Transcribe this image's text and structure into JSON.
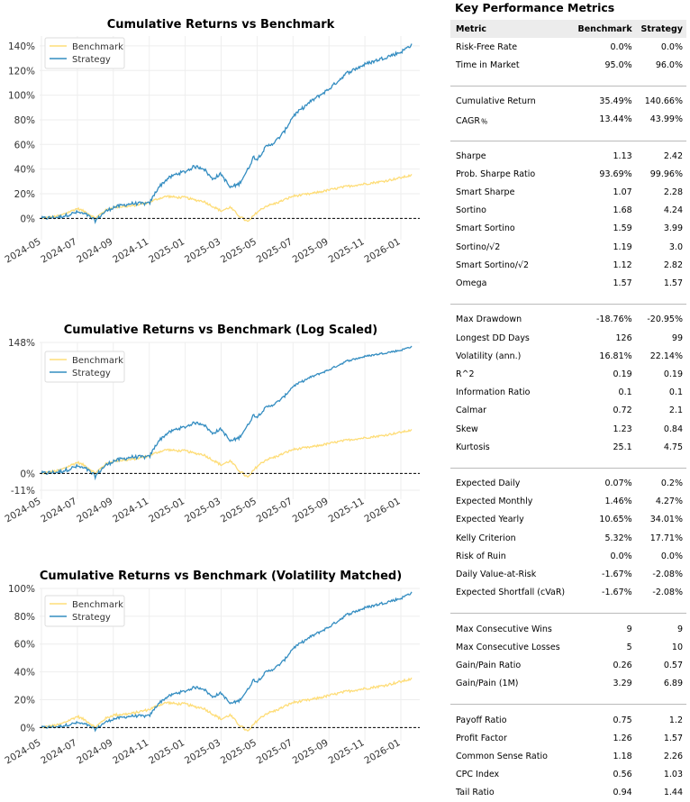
{
  "charts": [
    {
      "id": "cum",
      "title": "Cumulative Returns vs Benchmark",
      "type": "line",
      "scale": "linear",
      "ylim": [
        -0.1,
        1.48
      ],
      "yticks": [
        0,
        0.2,
        0.4,
        0.6,
        0.8,
        1.0,
        1.2,
        1.4
      ],
      "ytick_labels": [
        "0%",
        "20%",
        "40%",
        "60%",
        "80%",
        "100%",
        "120%",
        "140%"
      ],
      "benchmark_end": 0.35,
      "strategy_end": 1.41
    },
    {
      "id": "log",
      "title": "Cumulative Returns vs Benchmark (Log Scaled)",
      "type": "line",
      "scale": "log",
      "ylim": [
        -0.11,
        1.48
      ],
      "yticks": [
        -0.11,
        0,
        1.48
      ],
      "ytick_labels": [
        "-11%",
        "0%",
        "148%"
      ],
      "benchmark_end": 0.35,
      "strategy_end": 1.41
    },
    {
      "id": "vol",
      "title": "Cumulative Returns vs Benchmark (Volatility Matched)",
      "type": "line",
      "scale": "linear",
      "ylim": [
        -0.03,
        1.0
      ],
      "yticks": [
        0,
        0.2,
        0.4,
        0.6,
        0.8,
        1.0
      ],
      "ytick_labels": [
        "0%",
        "20%",
        "40%",
        "60%",
        "80%",
        "100%"
      ],
      "benchmark_end": 0.35,
      "strategy_end": 0.97
    }
  ],
  "chart_data": {
    "type": "line",
    "x_ticks": [
      "2024-05",
      "2024-07",
      "2024-09",
      "2024-11",
      "2025-01",
      "2025-03",
      "2025-05",
      "2025-07",
      "2025-09",
      "2025-11",
      "2026-01"
    ],
    "legend": [
      "Benchmark",
      "Strategy"
    ],
    "colors": {
      "benchmark": "#fedd78",
      "strategy": "#348dc1",
      "baseline": "#000000",
      "grid": "#eeeeee"
    },
    "x_months": [
      0,
      1,
      2,
      2.5,
      3,
      3.5,
      4,
      5,
      6,
      6.5,
      7,
      7.5,
      8,
      8.5,
      9,
      9.5,
      10,
      10.5,
      11,
      11.5,
      11.8,
      12,
      12.5,
      13,
      13.5,
      14,
      15,
      16,
      17,
      18,
      19,
      20,
      20.6
    ],
    "series": [
      {
        "name": "Benchmark",
        "values": [
          0,
          0.02,
          0.08,
          0.05,
          0.0,
          0.06,
          0.09,
          0.1,
          0.13,
          0.16,
          0.18,
          0.17,
          0.17,
          0.15,
          0.14,
          0.1,
          0.06,
          0.09,
          0.02,
          -0.03,
          0.02,
          0.05,
          0.1,
          0.12,
          0.15,
          0.18,
          0.2,
          0.23,
          0.26,
          0.28,
          0.3,
          0.33,
          0.35
        ]
      },
      {
        "name": "Strategy",
        "values": [
          0,
          0.01,
          0.05,
          0.03,
          -0.02,
          0.05,
          0.09,
          0.12,
          0.12,
          0.25,
          0.32,
          0.36,
          0.38,
          0.42,
          0.41,
          0.32,
          0.36,
          0.25,
          0.28,
          0.4,
          0.5,
          0.48,
          0.58,
          0.62,
          0.7,
          0.83,
          0.95,
          1.05,
          1.18,
          1.25,
          1.3,
          1.35,
          1.41
        ]
      }
    ]
  },
  "metrics": {
    "title": "Key Performance Metrics",
    "headers": [
      "Metric",
      "Benchmark",
      "Strategy"
    ],
    "groups": [
      [
        [
          "Risk-Free Rate",
          "0.0%",
          "0.0%"
        ],
        [
          "Time in Market",
          "95.0%",
          "96.0%"
        ]
      ],
      [
        [
          "Cumulative Return",
          "35.49%",
          "140.66%"
        ],
        [
          "CAGR﹪",
          "13.44%",
          "43.99%"
        ]
      ],
      [
        [
          "Sharpe",
          "1.13",
          "2.42"
        ],
        [
          "Prob. Sharpe Ratio",
          "93.69%",
          "99.96%"
        ],
        [
          "Smart Sharpe",
          "1.07",
          "2.28"
        ],
        [
          "Sortino",
          "1.68",
          "4.24"
        ],
        [
          "Smart Sortino",
          "1.59",
          "3.99"
        ],
        [
          "Sortino/√2",
          "1.19",
          "3.0"
        ],
        [
          "Smart Sortino/√2",
          "1.12",
          "2.82"
        ],
        [
          "Omega",
          "1.57",
          "1.57"
        ]
      ],
      [
        [
          "Max Drawdown",
          "-18.76%",
          "-20.95%"
        ],
        [
          "Longest DD Days",
          "126",
          "99"
        ],
        [
          "Volatility (ann.)",
          "16.81%",
          "22.14%"
        ],
        [
          "R^2",
          "0.19",
          "0.19"
        ],
        [
          "Information Ratio",
          "0.1",
          "0.1"
        ],
        [
          "Calmar",
          "0.72",
          "2.1"
        ],
        [
          "Skew",
          "1.23",
          "0.84"
        ],
        [
          "Kurtosis",
          "25.1",
          "4.75"
        ]
      ],
      [
        [
          "Expected Daily",
          "0.07%",
          "0.2%"
        ],
        [
          "Expected Monthly",
          "1.46%",
          "4.27%"
        ],
        [
          "Expected Yearly",
          "10.65%",
          "34.01%"
        ],
        [
          "Kelly Criterion",
          "5.32%",
          "17.71%"
        ],
        [
          "Risk of Ruin",
          "0.0%",
          "0.0%"
        ],
        [
          "Daily Value-at-Risk",
          "-1.67%",
          "-2.08%"
        ],
        [
          "Expected Shortfall (cVaR)",
          "-1.67%",
          "-2.08%"
        ]
      ],
      [
        [
          "Max Consecutive Wins",
          "9",
          "9"
        ],
        [
          "Max Consecutive Losses",
          "5",
          "10"
        ],
        [
          "Gain/Pain Ratio",
          "0.26",
          "0.57"
        ],
        [
          "Gain/Pain (1M)",
          "3.29",
          "6.89"
        ]
      ],
      [
        [
          "Payoff Ratio",
          "0.75",
          "1.2"
        ],
        [
          "Profit Factor",
          "1.26",
          "1.57"
        ],
        [
          "Common Sense Ratio",
          "1.18",
          "2.26"
        ],
        [
          "CPC Index",
          "0.56",
          "1.03"
        ],
        [
          "Tail Ratio",
          "0.94",
          "1.44"
        ]
      ]
    ]
  }
}
